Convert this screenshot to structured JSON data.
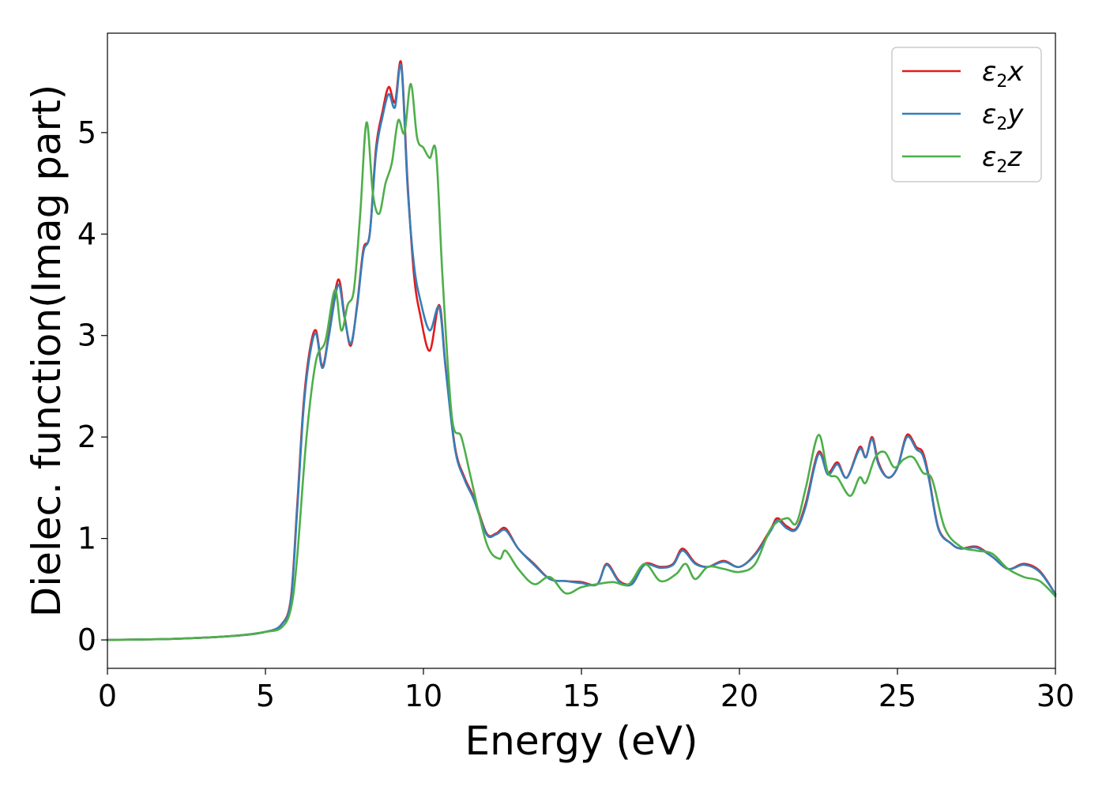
{
  "chart_data": {
    "type": "line",
    "title": "",
    "xlabel": "Energy (eV)",
    "ylabel": "Dielec. function(Imag part)",
    "xlim": [
      0,
      30
    ],
    "ylim": [
      -0.28,
      5.98
    ],
    "xticks": [
      0,
      5,
      10,
      15,
      20,
      25,
      30
    ],
    "yticks": [
      0,
      1,
      2,
      3,
      4,
      5
    ],
    "grid": false,
    "legend_position": "top-right",
    "series": [
      {
        "name": "ε2x",
        "legend": {
          "symbol": "ε",
          "subscript": "2",
          "suffix": "x"
        },
        "color": "#e41a1c",
        "x": [
          0,
          2,
          4,
          5,
          5.5,
          5.8,
          6.0,
          6.2,
          6.4,
          6.6,
          6.8,
          7.0,
          7.3,
          7.5,
          7.7,
          7.9,
          8.1,
          8.3,
          8.5,
          8.7,
          8.9,
          9.1,
          9.3,
          9.5,
          9.7,
          9.9,
          10.2,
          10.5,
          10.7,
          11.0,
          11.3,
          11.6,
          12.0,
          12.3,
          12.6,
          13.0,
          13.5,
          14.0,
          14.5,
          15.0,
          15.5,
          15.8,
          16.2,
          16.6,
          17.0,
          17.5,
          17.9,
          18.2,
          18.6,
          19.0,
          19.5,
          20.0,
          20.5,
          21.0,
          21.2,
          21.5,
          21.8,
          22.1,
          22.5,
          22.8,
          23.1,
          23.4,
          23.8,
          24.0,
          24.2,
          24.4,
          24.7,
          25.0,
          25.3,
          25.6,
          25.8,
          26.0,
          26.3,
          26.7,
          27.0,
          27.5,
          28.0,
          28.5,
          29.0,
          29.5,
          30.0
        ],
        "y": [
          0.0,
          0.01,
          0.04,
          0.08,
          0.15,
          0.4,
          1.3,
          2.3,
          2.85,
          3.05,
          2.7,
          3.0,
          3.55,
          3.2,
          2.9,
          3.3,
          3.85,
          4.0,
          4.85,
          5.2,
          5.45,
          5.3,
          5.68,
          4.5,
          3.6,
          3.2,
          2.85,
          3.3,
          2.7,
          1.9,
          1.6,
          1.4,
          1.05,
          1.05,
          1.1,
          0.9,
          0.75,
          0.6,
          0.58,
          0.57,
          0.55,
          0.75,
          0.58,
          0.56,
          0.75,
          0.72,
          0.75,
          0.9,
          0.76,
          0.72,
          0.78,
          0.72,
          0.85,
          1.1,
          1.2,
          1.12,
          1.1,
          1.35,
          1.85,
          1.65,
          1.75,
          1.6,
          1.9,
          1.8,
          2.0,
          1.75,
          1.6,
          1.7,
          2.02,
          1.9,
          1.85,
          1.6,
          1.1,
          0.95,
          0.9,
          0.92,
          0.82,
          0.7,
          0.75,
          0.68,
          0.45
        ]
      },
      {
        "name": "ε2y",
        "legend": {
          "symbol": "ε",
          "subscript": "2",
          "suffix": "y"
        },
        "color": "#377eb8",
        "x": [
          0,
          2,
          4,
          5,
          5.5,
          5.8,
          6.0,
          6.2,
          6.4,
          6.6,
          6.8,
          7.0,
          7.3,
          7.5,
          7.7,
          7.9,
          8.1,
          8.3,
          8.5,
          8.7,
          8.9,
          9.1,
          9.3,
          9.5,
          9.7,
          9.9,
          10.2,
          10.5,
          10.7,
          11.0,
          11.3,
          11.6,
          12.0,
          12.3,
          12.6,
          13.0,
          13.5,
          14.0,
          14.5,
          15.0,
          15.5,
          15.8,
          16.2,
          16.6,
          17.0,
          17.5,
          17.9,
          18.2,
          18.6,
          19.0,
          19.5,
          20.0,
          20.5,
          21.0,
          21.2,
          21.5,
          21.8,
          22.1,
          22.5,
          22.8,
          23.1,
          23.4,
          23.8,
          24.0,
          24.2,
          24.4,
          24.7,
          25.0,
          25.3,
          25.6,
          25.8,
          26.0,
          26.3,
          26.7,
          27.0,
          27.5,
          28.0,
          28.5,
          29.0,
          29.5,
          30.0
        ],
        "y": [
          0.0,
          0.01,
          0.04,
          0.08,
          0.15,
          0.38,
          1.25,
          2.25,
          2.8,
          3.02,
          2.68,
          2.98,
          3.5,
          3.18,
          2.92,
          3.28,
          3.82,
          4.0,
          4.8,
          5.15,
          5.38,
          5.25,
          5.65,
          4.45,
          3.7,
          3.35,
          3.05,
          3.28,
          2.68,
          1.88,
          1.58,
          1.38,
          1.04,
          1.04,
          1.08,
          0.9,
          0.74,
          0.6,
          0.58,
          0.56,
          0.55,
          0.74,
          0.57,
          0.55,
          0.74,
          0.71,
          0.74,
          0.88,
          0.75,
          0.72,
          0.77,
          0.72,
          0.84,
          1.08,
          1.18,
          1.1,
          1.09,
          1.32,
          1.83,
          1.63,
          1.73,
          1.6,
          1.88,
          1.8,
          1.98,
          1.73,
          1.6,
          1.7,
          2.0,
          1.88,
          1.82,
          1.58,
          1.09,
          0.95,
          0.9,
          0.91,
          0.82,
          0.7,
          0.74,
          0.67,
          0.45
        ]
      },
      {
        "name": "ε2z",
        "legend": {
          "symbol": "ε",
          "subscript": "2",
          "suffix": "z"
        },
        "color": "#4daf4a",
        "x": [
          0,
          2,
          4,
          5,
          5.5,
          5.8,
          6.0,
          6.3,
          6.6,
          6.9,
          7.2,
          7.4,
          7.6,
          7.8,
          8.0,
          8.2,
          8.4,
          8.6,
          8.8,
          9.0,
          9.2,
          9.4,
          9.6,
          9.8,
          10.0,
          10.2,
          10.4,
          10.6,
          10.9,
          11.2,
          11.5,
          12.0,
          12.4,
          12.6,
          13.0,
          13.5,
          14.0,
          14.5,
          15.0,
          15.5,
          16.0,
          16.5,
          17.0,
          17.5,
          18.0,
          18.3,
          18.6,
          19.0,
          19.5,
          20.0,
          20.5,
          21.0,
          21.5,
          21.8,
          22.1,
          22.5,
          22.8,
          23.1,
          23.5,
          23.8,
          24.0,
          24.3,
          24.6,
          24.9,
          25.2,
          25.5,
          25.8,
          26.1,
          26.5,
          27.0,
          27.5,
          28.0,
          28.5,
          29.0,
          29.5,
          30.0
        ],
        "y": [
          0.0,
          0.01,
          0.04,
          0.08,
          0.12,
          0.3,
          0.8,
          2.0,
          2.75,
          2.95,
          3.45,
          3.05,
          3.3,
          3.45,
          4.2,
          5.1,
          4.4,
          4.2,
          4.5,
          4.7,
          5.12,
          5.0,
          5.48,
          4.95,
          4.85,
          4.75,
          4.8,
          3.6,
          2.2,
          2.0,
          1.6,
          0.95,
          0.8,
          0.88,
          0.7,
          0.55,
          0.62,
          0.46,
          0.52,
          0.55,
          0.57,
          0.55,
          0.75,
          0.58,
          0.65,
          0.75,
          0.6,
          0.72,
          0.7,
          0.67,
          0.75,
          1.1,
          1.2,
          1.15,
          1.5,
          2.02,
          1.65,
          1.6,
          1.42,
          1.6,
          1.55,
          1.8,
          1.85,
          1.7,
          1.78,
          1.8,
          1.65,
          1.58,
          1.1,
          0.92,
          0.88,
          0.85,
          0.7,
          0.62,
          0.58,
          0.43
        ]
      }
    ]
  }
}
